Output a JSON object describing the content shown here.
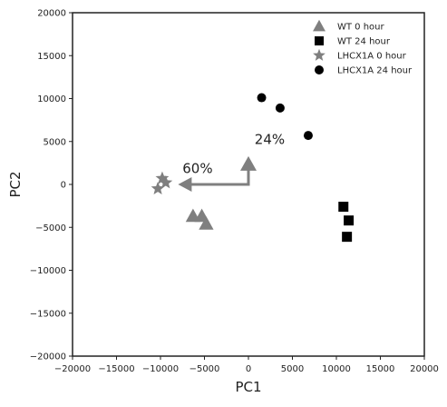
{
  "chart_data": {
    "type": "scatter",
    "title": "",
    "xlabel": "PC1",
    "ylabel": "PC2",
    "xlim": [
      -20000,
      20000
    ],
    "ylim": [
      -20000,
      20000
    ],
    "xticks": [
      -20000,
      -15000,
      -10000,
      -5000,
      0,
      5000,
      10000,
      15000,
      20000
    ],
    "yticks": [
      -20000,
      -15000,
      -10000,
      -5000,
      0,
      5000,
      10000,
      15000,
      20000
    ],
    "x_tick_labels": [
      "−20000",
      "−15000",
      "−10000",
      "−5000",
      "0",
      "5000",
      "10000",
      "15000",
      "20000"
    ],
    "y_tick_labels": [
      "−20000",
      "−15000",
      "−10000",
      "−5000",
      "0",
      "5000",
      "10000",
      "15000",
      "20000"
    ],
    "grid": false,
    "legend_position": "top-right",
    "series": [
      {
        "name": "WT 0 hour",
        "marker": "triangle",
        "color": "#7f7f7f",
        "points": [
          [
            -6300,
            -3700
          ],
          [
            -5300,
            -3700
          ],
          [
            -4800,
            -4600
          ]
        ]
      },
      {
        "name": "WT 24 hour",
        "marker": "square",
        "color": "#000000",
        "points": [
          [
            10800,
            -2600
          ],
          [
            11400,
            -4200
          ],
          [
            11200,
            -6100
          ]
        ]
      },
      {
        "name": "LHCX1A 0 hour",
        "marker": "star",
        "color": "#7f7f7f",
        "points": [
          [
            -9800,
            700
          ],
          [
            -9400,
            200
          ],
          [
            -10300,
            -500
          ]
        ]
      },
      {
        "name": "LHCX1A 24 hour",
        "marker": "circle",
        "color": "#000000",
        "points": [
          [
            1500,
            10100
          ],
          [
            3600,
            8900
          ],
          [
            6800,
            5700
          ]
        ]
      }
    ],
    "annotations": {
      "arrow_color": "#7f7f7f",
      "pc1_arrow": {
        "from": [
          0,
          0
        ],
        "to": [
          -8000,
          0
        ]
      },
      "pc2_arrow": {
        "from": [
          0,
          0
        ],
        "to": [
          0,
          3300
        ]
      },
      "pc1_percent": {
        "text": "60%",
        "x": -7500,
        "y": 1300
      },
      "pc2_percent": {
        "text": "24%",
        "x": 700,
        "y": 4700
      }
    }
  }
}
